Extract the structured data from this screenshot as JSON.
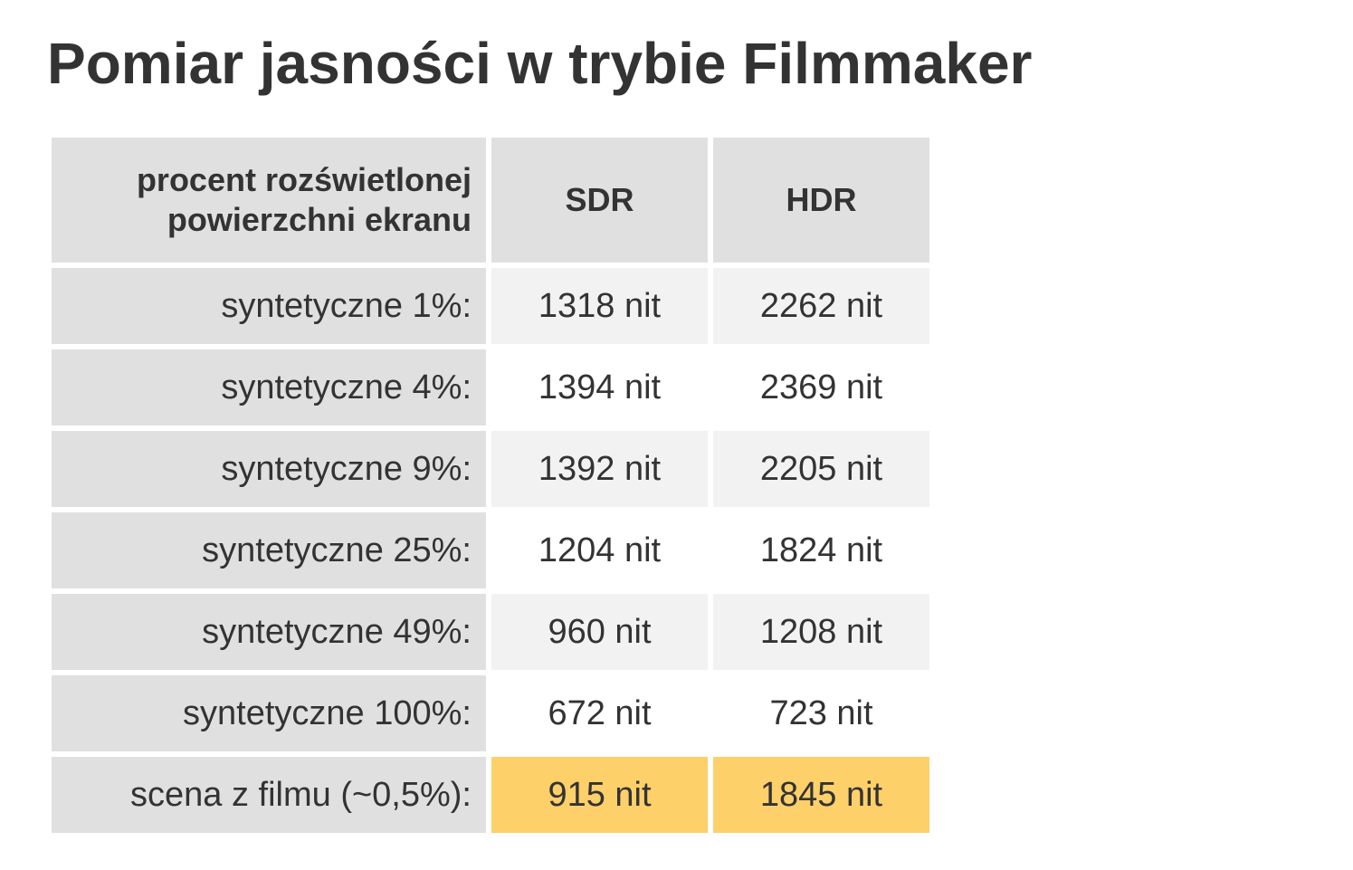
{
  "title": "Pomiar jasności w trybie Filmmaker",
  "table": {
    "header": [
      "procent rozświetlonej powierzchni ekranu",
      "SDR",
      "HDR"
    ],
    "rows": [
      [
        "syntetyczne 1%:",
        "1318 nit",
        "2262 nit"
      ],
      [
        "syntetyczne 4%:",
        "1394 nit",
        "2369 nit"
      ],
      [
        "syntetyczne 9%:",
        "1392 nit",
        "2205 nit"
      ],
      [
        "syntetyczne 25%:",
        "1204 nit",
        "1824 nit"
      ],
      [
        "syntetyczne 49%:",
        "960 nit",
        "1208 nit"
      ],
      [
        "syntetyczne 100%:",
        "672 nit",
        "723 nit"
      ],
      [
        "scena z filmu (~0,5%):",
        "915 nit",
        "1845 nit"
      ]
    ]
  }
}
